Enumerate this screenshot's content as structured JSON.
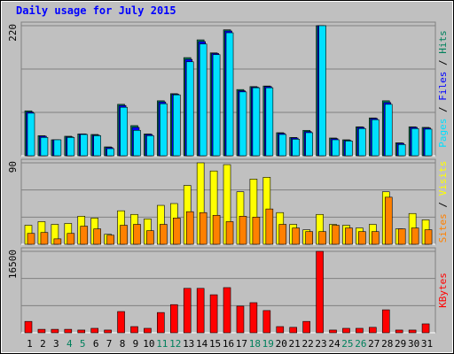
{
  "chart_data": [
    {
      "type": "bar",
      "title": "Daily usage for July 2015",
      "title_color": "#0000ff",
      "ylim": [
        0,
        220
      ],
      "yticks": [
        220
      ],
      "grid_divisions": 3,
      "legend_separator": " / ",
      "series": [
        {
          "name": "Hits",
          "color": "#00805c",
          "values": [
            76,
            34,
            27,
            33,
            37,
            36,
            15,
            87,
            51,
            37,
            93,
            105,
            166,
            196,
            174,
            213,
            112,
            117,
            118,
            39,
            31,
            43,
            220,
            30,
            27,
            49,
            64,
            93,
            22,
            49,
            48
          ]
        },
        {
          "name": "Files",
          "color": "#0000ff",
          "values": [
            74,
            33,
            27,
            32,
            37,
            35,
            14,
            85,
            48,
            36,
            91,
            104,
            163,
            193,
            173,
            211,
            110,
            116,
            117,
            38,
            30,
            41,
            220,
            29,
            26,
            48,
            63,
            90,
            21,
            48,
            47
          ]
        },
        {
          "name": "Pages",
          "color": "#00e0ff",
          "values": [
            72,
            31,
            27,
            31,
            36,
            34,
            12,
            82,
            43,
            34,
            88,
            103,
            159,
            189,
            171,
            208,
            108,
            115,
            115,
            36,
            28,
            39,
            220,
            27,
            25,
            46,
            61,
            87,
            19,
            46,
            45
          ]
        }
      ]
    },
    {
      "type": "bar",
      "ylim": [
        0,
        90
      ],
      "yticks": [
        90
      ],
      "grid_divisions": 3,
      "legend_separator": " / ",
      "series": [
        {
          "name": "Visits",
          "color": "#ffff00",
          "values": [
            21,
            25,
            22,
            23,
            31,
            29,
            11,
            37,
            33,
            28,
            43,
            45,
            65,
            90,
            81,
            88,
            58,
            72,
            74,
            35,
            22,
            16,
            33,
            22,
            21,
            18,
            22,
            58,
            17,
            34,
            27
          ]
        },
        {
          "name": "Sites",
          "color": "#ff8000",
          "values": [
            12,
            13,
            6,
            12,
            20,
            17,
            10,
            21,
            22,
            15,
            22,
            29,
            36,
            35,
            32,
            25,
            31,
            30,
            39,
            22,
            18,
            14,
            14,
            21,
            18,
            14,
            14,
            52,
            17,
            18,
            16
          ]
        }
      ]
    },
    {
      "type": "bar",
      "ylim": [
        0,
        16500
      ],
      "yticks": [
        16500
      ],
      "grid_divisions": 3,
      "legend_separator": " / ",
      "categories": [
        "1",
        "2",
        "3",
        "4",
        "5",
        "6",
        "7",
        "8",
        "9",
        "10",
        "11",
        "12",
        "13",
        "14",
        "15",
        "16",
        "17",
        "18",
        "19",
        "20",
        "21",
        "22",
        "23",
        "24",
        "25",
        "26",
        "27",
        "28",
        "29",
        "30",
        "31"
      ],
      "label_colors": [
        "#000000",
        "#000000",
        "#000000",
        "#00805c",
        "#00805c",
        "#000000",
        "#000000",
        "#000000",
        "#000000",
        "#000000",
        "#00805c",
        "#00805c",
        "#000000",
        "#000000",
        "#000000",
        "#000000",
        "#000000",
        "#00805c",
        "#00805c",
        "#000000",
        "#000000",
        "#000000",
        "#000000",
        "#000000",
        "#00805c",
        "#00805c",
        "#000000",
        "#000000",
        "#000000",
        "#000000",
        "#000000"
      ],
      "series": [
        {
          "name": "KBytes",
          "color": "#ff0000",
          "values": [
            2300,
            700,
            700,
            700,
            550,
            900,
            550,
            4300,
            1250,
            900,
            4100,
            5700,
            9000,
            9000,
            7700,
            9150,
            5400,
            6100,
            4500,
            1250,
            1100,
            2300,
            16500,
            550,
            900,
            900,
            1100,
            4650,
            550,
            550,
            1800
          ]
        }
      ]
    }
  ]
}
